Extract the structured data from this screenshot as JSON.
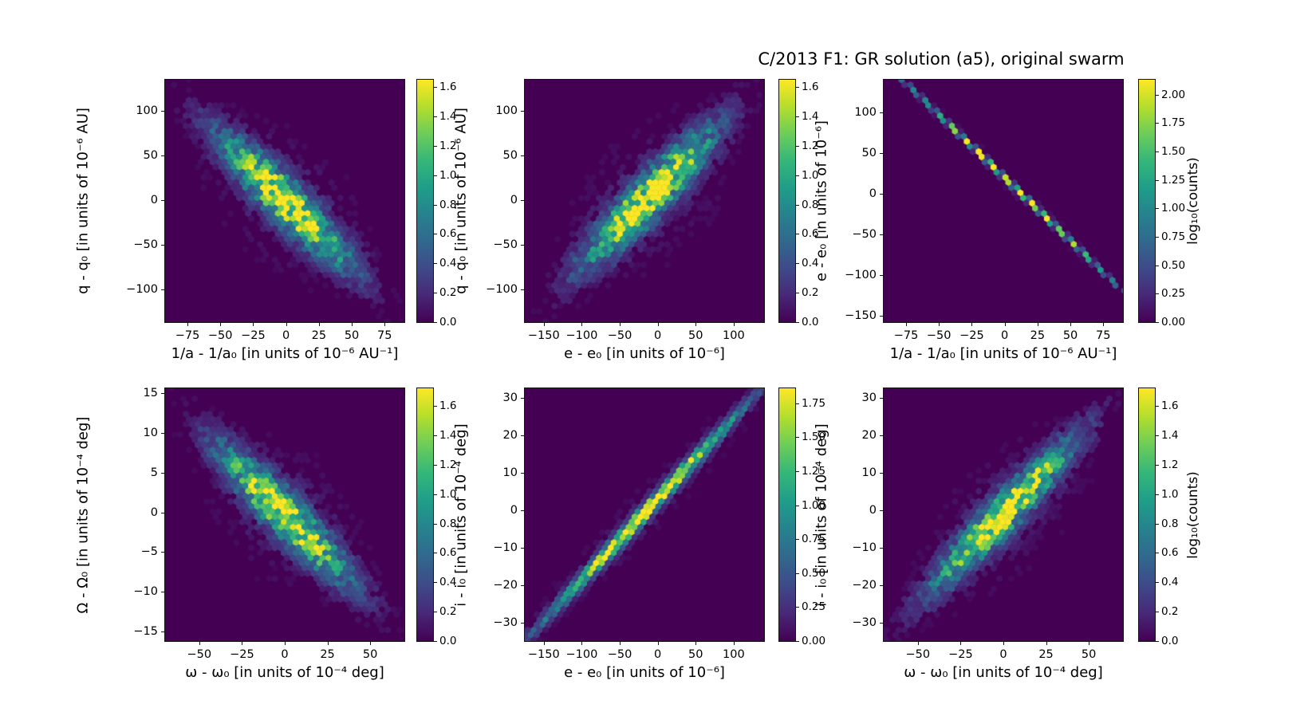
{
  "title": "C/2013 F1: GR solution (a5), original swarm",
  "colors": {
    "figure_background": "#ffffff",
    "plot_background": "#440154",
    "colormap": "viridis",
    "text": "#000000"
  },
  "chart_data": [
    {
      "panel": "q - q0 vs 1/a - 1/a0",
      "type": "hexbin",
      "xlabel": "1/a - 1/a₀ [in units of 10⁻⁶ AU⁻¹]",
      "ylabel": "q - q₀ [in units of 10⁻⁶ AU]",
      "xlim": [
        -92,
        90
      ],
      "ylim": [
        -137,
        135
      ],
      "xticks": [
        -75,
        -50,
        -25,
        0,
        25,
        50,
        75
      ],
      "yticks": [
        -100,
        -50,
        0,
        50,
        100
      ],
      "correlation": "negative",
      "grid": false,
      "cloud": {
        "line": [
          [
            0.06,
            0.94
          ],
          [
            0.94,
            0.06
          ]
        ],
        "sigma_along": 0.2,
        "sigma_perp": 0.05,
        "peak": 1.62,
        "noise": 0.9,
        "seed": 101
      },
      "colorbar": {
        "ticks": [
          "0.0",
          "0.2",
          "0.4",
          "0.6",
          "0.8",
          "1.0",
          "1.2",
          "1.4",
          "1.6"
        ],
        "vmax": 1.65,
        "label": null
      }
    },
    {
      "panel": "q - q0 vs e - e0",
      "type": "hexbin",
      "xlabel": "e - e₀ [in units of 10⁻⁶]",
      "ylabel": "q - q₀ [in units of 10⁻⁶ AU]",
      "xlim": [
        -175,
        140
      ],
      "ylim": [
        -137,
        135
      ],
      "xticks": [
        -150,
        -100,
        -50,
        0,
        50,
        100
      ],
      "yticks": [
        -100,
        -50,
        0,
        50,
        100
      ],
      "correlation": "positive",
      "grid": false,
      "cloud": {
        "line": [
          [
            0.08,
            0.06
          ],
          [
            0.96,
            0.97
          ]
        ],
        "sigma_along": 0.2,
        "sigma_perp": 0.05,
        "peak": 1.62,
        "noise": 0.9,
        "seed": 202
      },
      "colorbar": {
        "ticks": [
          "0.0",
          "0.2",
          "0.4",
          "0.6",
          "0.8",
          "1.0",
          "1.2",
          "1.4",
          "1.6"
        ],
        "vmax": 1.65,
        "label": null
      }
    },
    {
      "panel": "e - e0 vs 1/a - 1/a0",
      "type": "hexbin",
      "xlabel": "1/a - 1/a₀ [in units of 10⁻⁶ AU⁻¹]",
      "ylabel": "e - e₀ [in units of 10⁻⁶]",
      "xlim": [
        -92,
        90
      ],
      "ylim": [
        -158,
        140
      ],
      "xticks": [
        -75,
        -50,
        -25,
        0,
        25,
        50,
        75
      ],
      "yticks": [
        -150,
        -100,
        -50,
        0,
        50,
        100
      ],
      "correlation": "negative",
      "grid": false,
      "cloud": {
        "line": [
          [
            0.11,
            0.97
          ],
          [
            0.955,
            0.17
          ]
        ],
        "sigma_along": 0.35,
        "sigma_perp": 0.0055,
        "peak": 2.35,
        "noise": 0.35,
        "seed": 303
      },
      "colorbar": {
        "ticks": [
          "0.00",
          "0.25",
          "0.50",
          "0.75",
          "1.00",
          "1.25",
          "1.50",
          "1.75",
          "2.00"
        ],
        "vmax": 2.13,
        "label": "log₁₀(counts)"
      }
    },
    {
      "panel": "Omega - Omega0 vs omega - omega0",
      "type": "hexbin",
      "xlabel": "ω - ω₀ [in units of 10⁻⁴ deg]",
      "ylabel": "Ω - Ω₀ [in units of 10⁻⁴ deg]",
      "xlim": [
        -70,
        70
      ],
      "ylim": [
        -16.2,
        15.6
      ],
      "xticks": [
        -50,
        -25,
        0,
        25,
        50
      ],
      "yticks": [
        -15,
        -10,
        -5,
        0,
        5,
        10,
        15
      ],
      "correlation": "negative",
      "grid": false,
      "cloud": {
        "line": [
          [
            0.06,
            0.93
          ],
          [
            0.94,
            0.07
          ]
        ],
        "sigma_along": 0.2,
        "sigma_perp": 0.048,
        "peak": 1.66,
        "noise": 0.9,
        "seed": 404
      },
      "colorbar": {
        "ticks": [
          "0.0",
          "0.2",
          "0.4",
          "0.6",
          "0.8",
          "1.0",
          "1.2",
          "1.4",
          "1.6"
        ],
        "vmax": 1.72,
        "label": null
      }
    },
    {
      "panel": "i - i0 vs e - e0",
      "type": "hexbin",
      "xlabel": "e - e₀ [in units of 10⁻⁶]",
      "ylabel": "i - i₀ [in units of 10⁻⁴ deg]",
      "xlim": [
        -175,
        140
      ],
      "ylim": [
        -35,
        32.5
      ],
      "xticks": [
        -150,
        -100,
        -50,
        0,
        50,
        100
      ],
      "yticks": [
        -30,
        -20,
        -10,
        0,
        10,
        20,
        30
      ],
      "correlation": "positive",
      "grid": false,
      "cloud": {
        "line": [
          [
            0.05,
            0.05
          ],
          [
            0.95,
            0.96
          ]
        ],
        "sigma_along": 0.3,
        "sigma_perp": 0.016,
        "peak": 2.0,
        "noise": 0.55,
        "seed": 505
      },
      "colorbar": {
        "ticks": [
          "0.00",
          "0.25",
          "0.50",
          "0.75",
          "1.00",
          "1.25",
          "1.50",
          "1.75"
        ],
        "vmax": 1.86,
        "label": null
      }
    },
    {
      "panel": "i - i0 vs omega - omega0",
      "type": "hexbin",
      "xlabel": "ω - ω₀ [in units of 10⁻⁴ deg]",
      "ylabel": "i - i₀ [in units of 10⁻⁴ deg]",
      "xlim": [
        -70,
        70
      ],
      "ylim": [
        -35,
        32.5
      ],
      "xticks": [
        -50,
        -25,
        0,
        25,
        50
      ],
      "yticks": [
        -30,
        -20,
        -10,
        0,
        10,
        20,
        30
      ],
      "correlation": "positive",
      "grid": false,
      "cloud": {
        "line": [
          [
            0.05,
            0.05
          ],
          [
            0.95,
            0.95
          ]
        ],
        "sigma_along": 0.21,
        "sigma_perp": 0.042,
        "peak": 1.7,
        "noise": 0.9,
        "seed": 606
      },
      "colorbar": {
        "ticks": [
          "0.0",
          "0.2",
          "0.4",
          "0.6",
          "0.8",
          "1.0",
          "1.2",
          "1.4",
          "1.6"
        ],
        "vmax": 1.72,
        "label": "log₁₀(counts)"
      }
    }
  ]
}
